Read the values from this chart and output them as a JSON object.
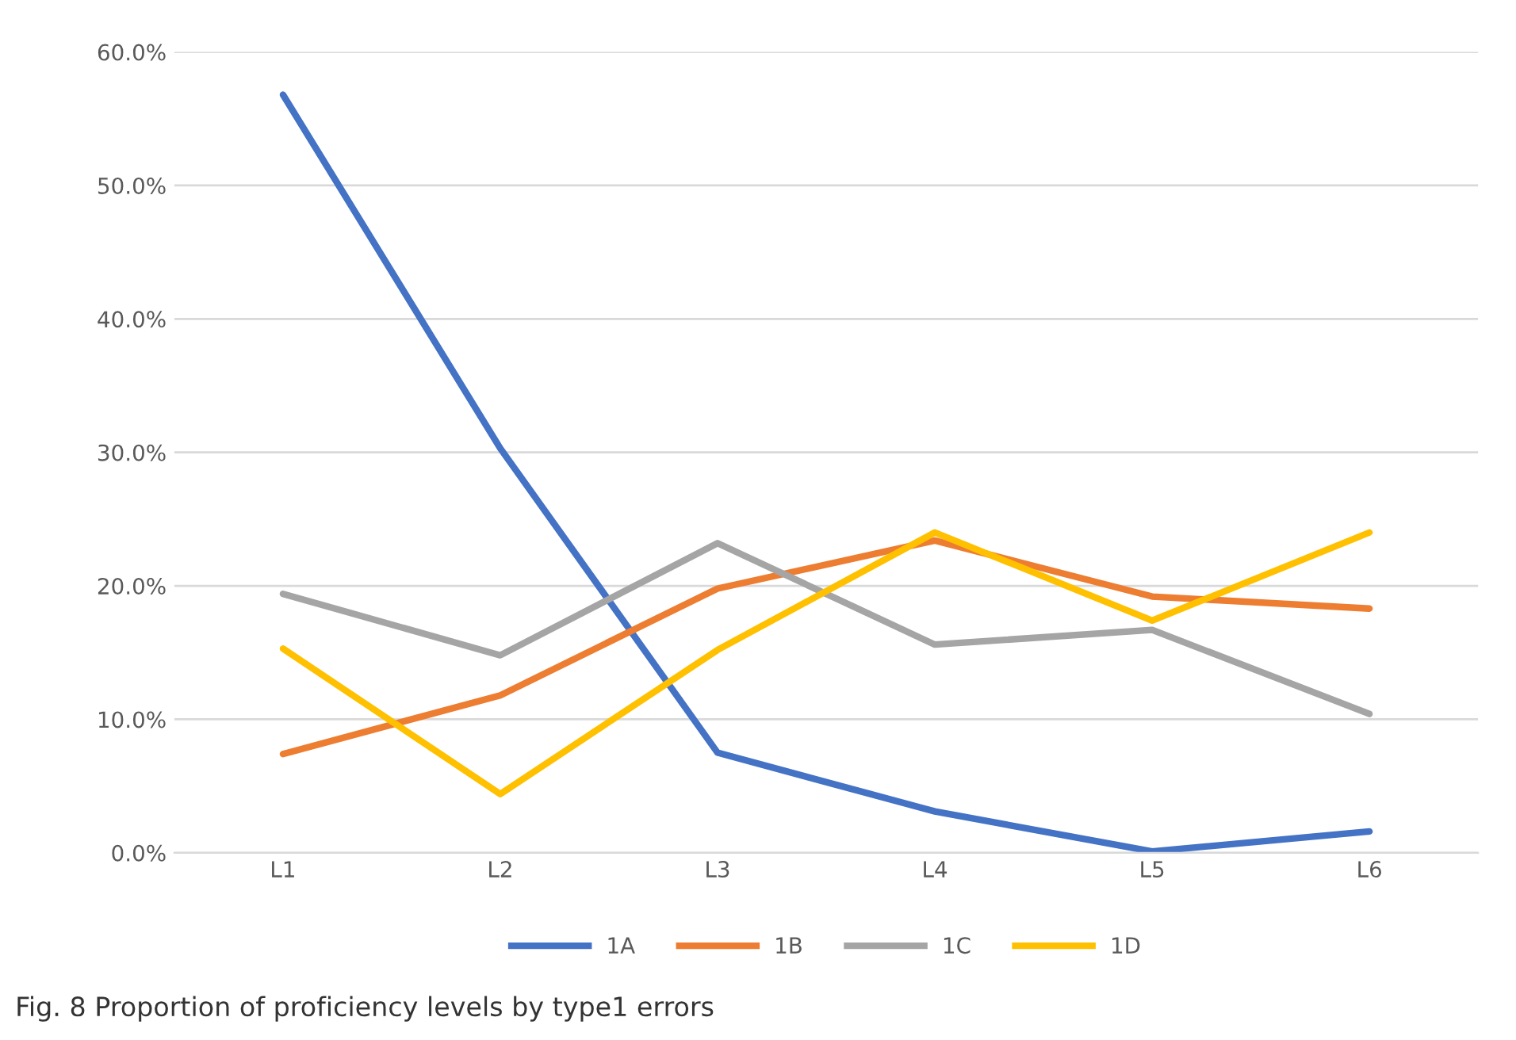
{
  "chart_data": {
    "type": "line",
    "categories": [
      "L1",
      "L2",
      "L3",
      "L4",
      "L5",
      "L6"
    ],
    "series": [
      {
        "name": "1A",
        "color": "#4472c4",
        "values": [
          56.8,
          30.3,
          7.5,
          3.1,
          0.1,
          1.6
        ]
      },
      {
        "name": "1B",
        "color": "#ed7d31",
        "values": [
          7.4,
          11.8,
          19.8,
          23.4,
          19.2,
          18.3
        ]
      },
      {
        "name": "1C",
        "color": "#a5a5a5",
        "values": [
          19.4,
          14.8,
          23.2,
          15.6,
          16.7,
          10.4
        ]
      },
      {
        "name": "1D",
        "color": "#ffc000",
        "values": [
          15.3,
          4.4,
          15.2,
          24.0,
          17.4,
          24.0
        ]
      }
    ],
    "ylim": [
      0,
      60
    ],
    "yticks": [
      {
        "value": 0,
        "label": "0.0%"
      },
      {
        "value": 10,
        "label": "10.0%"
      },
      {
        "value": 20,
        "label": "20.0%"
      },
      {
        "value": 30,
        "label": "30.0%"
      },
      {
        "value": 40,
        "label": "40.0%"
      },
      {
        "value": 50,
        "label": "50.0%"
      },
      {
        "value": 60,
        "label": "60.0%"
      }
    ],
    "grid": "y",
    "legend": "bottom",
    "marker": "none",
    "line_style": "solid",
    "annotations": [
      "Fig. 8 Proportion of proficiency levels by type1 errors"
    ]
  }
}
